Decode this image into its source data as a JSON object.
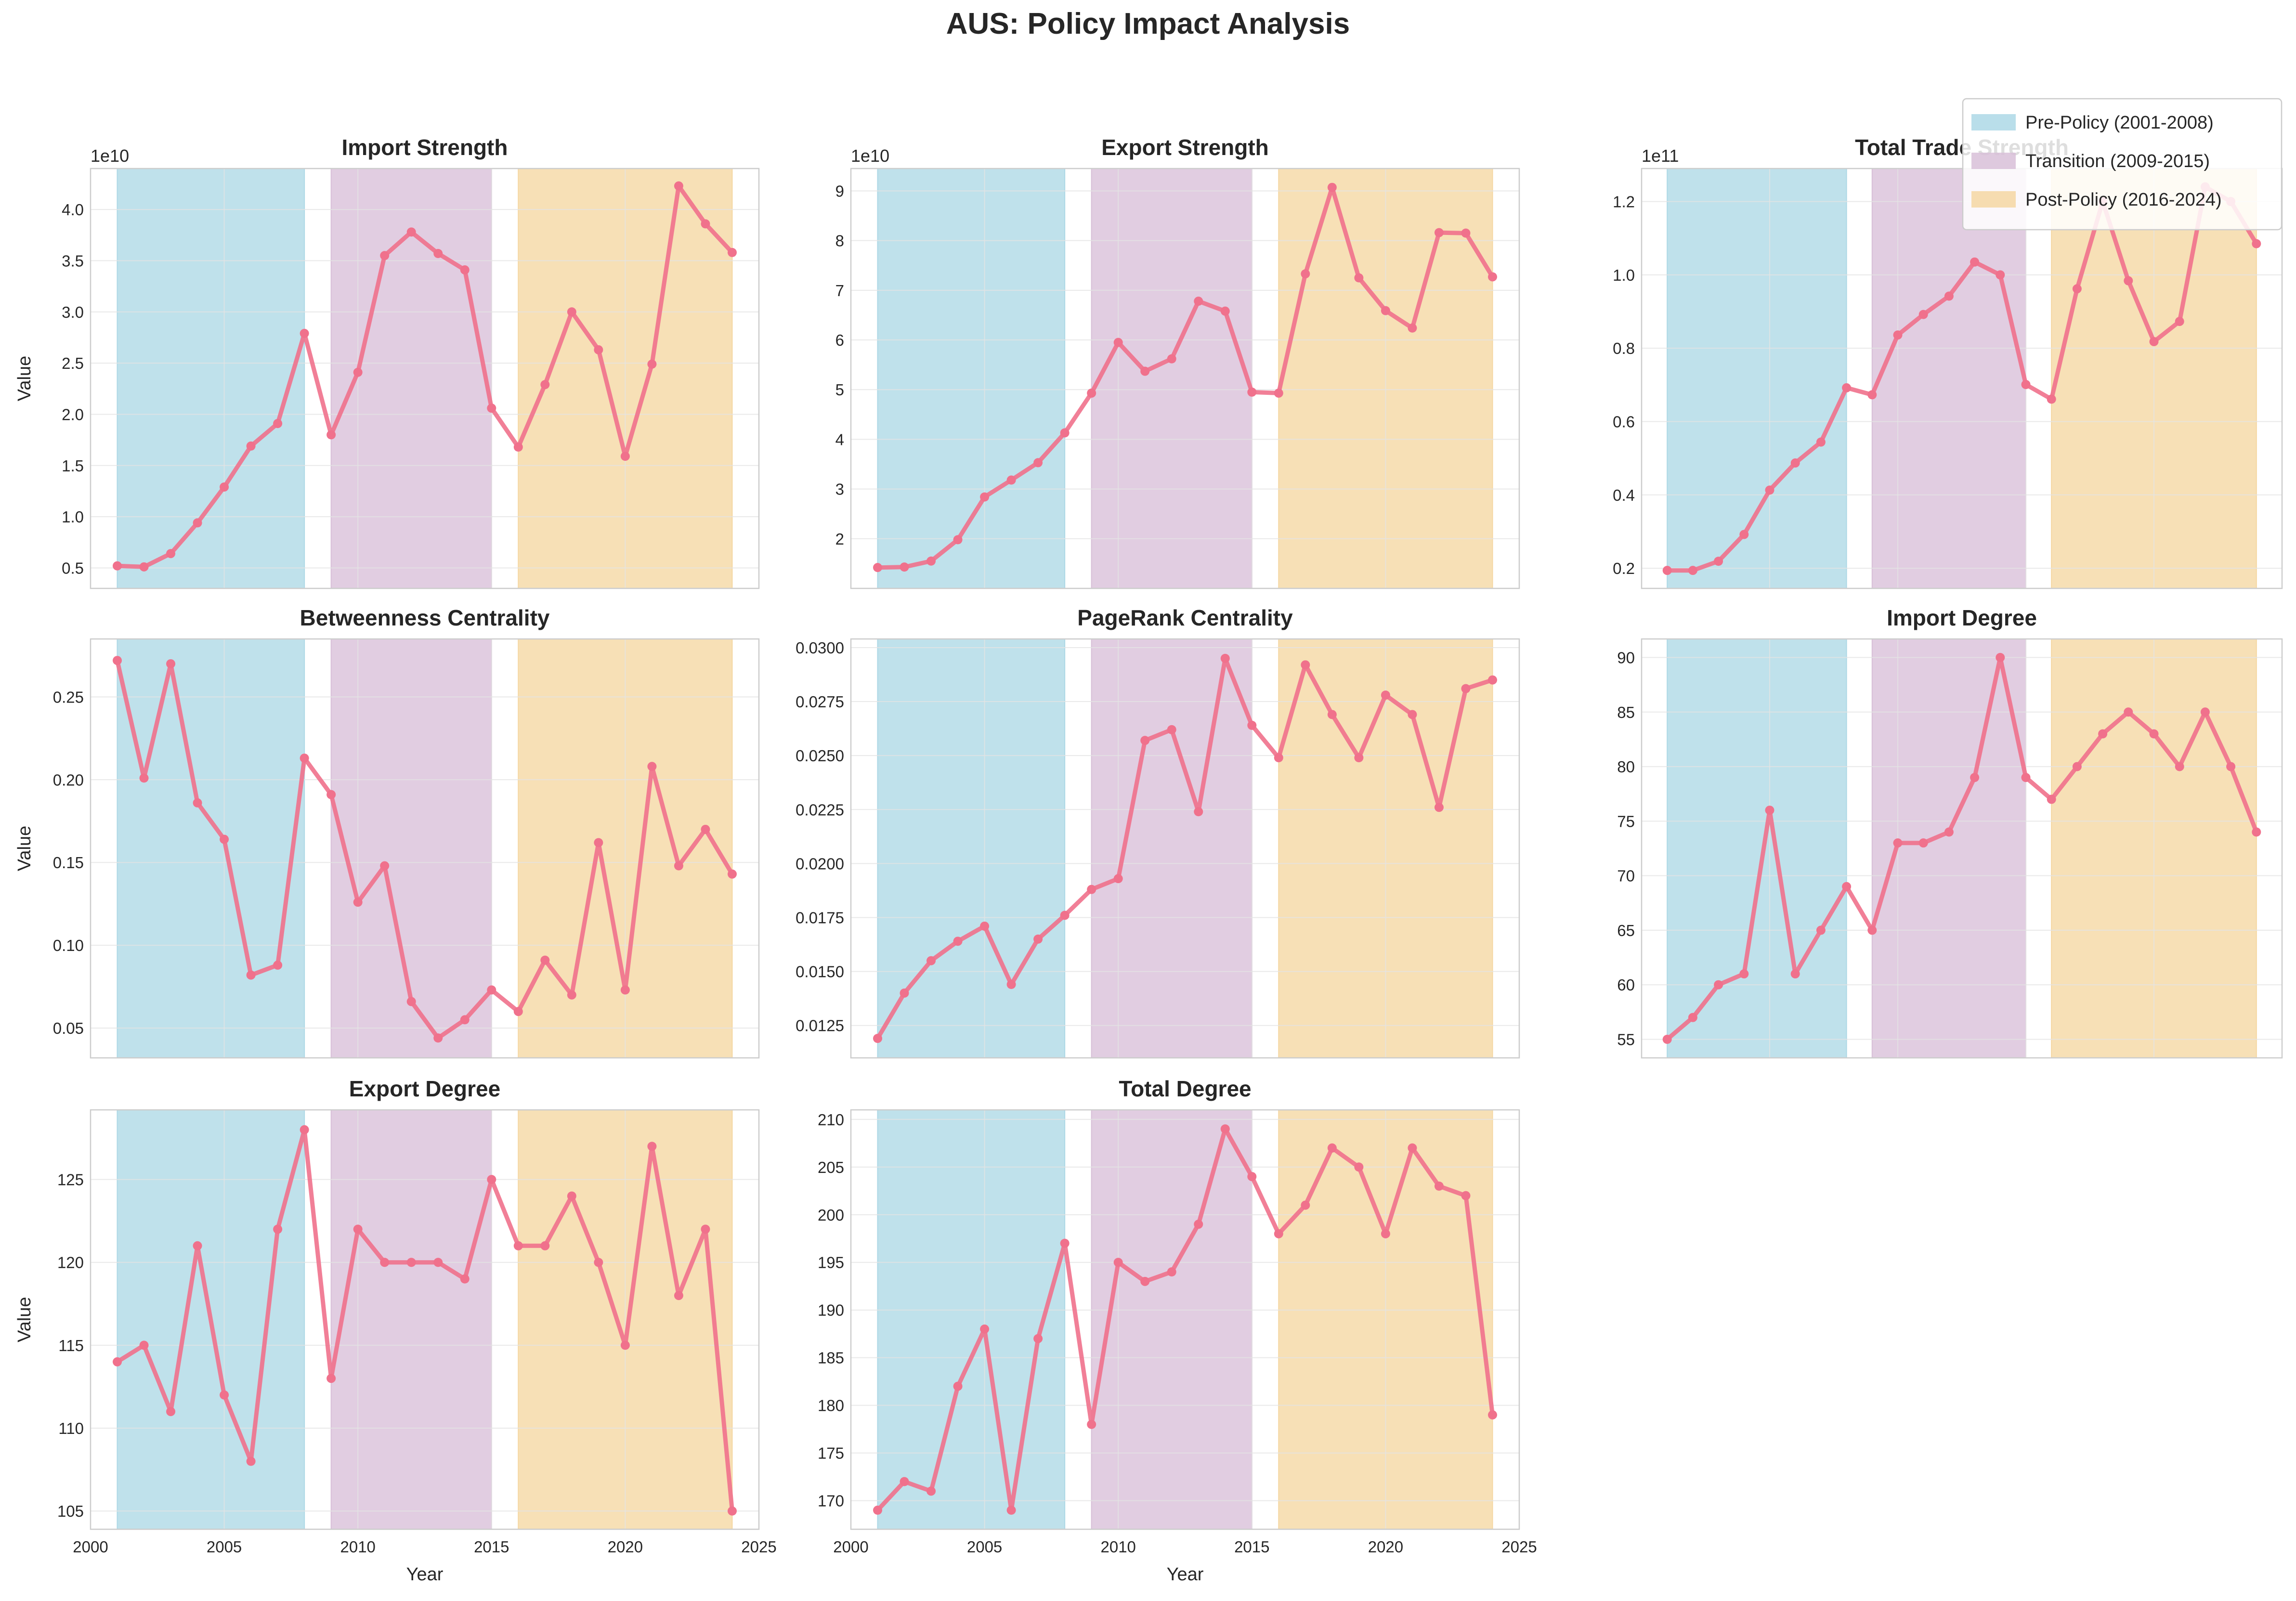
{
  "figure": {
    "title": "AUS: Policy Impact Analysis",
    "colors": {
      "line": "#f0718c",
      "frame": "#cccccc",
      "grid": "#e4e4e4"
    }
  },
  "chart_data": [
    {
      "type": "line",
      "title": "Import Strength",
      "ylabel": "Value",
      "xlabel": "",
      "scale_note": "1e10",
      "x": [
        2001,
        2002,
        2003,
        2004,
        2005,
        2006,
        2007,
        2008,
        2009,
        2010,
        2011,
        2012,
        2013,
        2014,
        2015,
        2016,
        2017,
        2018,
        2019,
        2020,
        2021,
        2022,
        2023,
        2024
      ],
      "y": [
        0.52,
        0.51,
        0.64,
        0.94,
        1.29,
        1.69,
        1.91,
        2.79,
        1.8,
        2.41,
        3.55,
        3.78,
        3.57,
        3.41,
        2.06,
        1.68,
        2.29,
        3.0,
        2.63,
        1.59,
        2.49,
        4.23,
        3.86,
        3.58
      ],
      "yticks": [
        0.5,
        1.0,
        1.5,
        2.0,
        2.5,
        3.0,
        3.5,
        4.0
      ],
      "ytick_labels": [
        "0.5",
        "1.0",
        "1.5",
        "2.0",
        "2.5",
        "3.0",
        "3.5",
        "4.0"
      ],
      "ylim": [
        0.3,
        4.4
      ],
      "xlim": [
        2000,
        2025
      ],
      "xticks": [
        2000,
        2005,
        2010,
        2015,
        2020,
        2025
      ],
      "xtick_labels": [],
      "grid": true
    },
    {
      "type": "line",
      "title": "Export Strength",
      "ylabel": "",
      "xlabel": "",
      "scale_note": "1e10",
      "x": [
        2001,
        2002,
        2003,
        2004,
        2005,
        2006,
        2007,
        2008,
        2009,
        2010,
        2011,
        2012,
        2013,
        2014,
        2015,
        2016,
        2017,
        2018,
        2019,
        2020,
        2021,
        2022,
        2023,
        2024
      ],
      "y": [
        1.42,
        1.43,
        1.55,
        1.98,
        2.84,
        3.18,
        3.53,
        4.13,
        4.93,
        5.95,
        5.37,
        5.62,
        6.78,
        6.58,
        4.95,
        4.93,
        7.33,
        9.07,
        7.25,
        6.59,
        6.24,
        8.16,
        8.15,
        7.27
      ],
      "yticks": [
        2,
        3,
        4,
        5,
        6,
        7,
        8,
        9
      ],
      "ytick_labels": [
        "2",
        "3",
        "4",
        "5",
        "6",
        "7",
        "8",
        "9"
      ],
      "ylim": [
        1.0,
        9.45
      ],
      "xlim": [
        2000,
        2025
      ],
      "xticks": [
        2000,
        2005,
        2010,
        2015,
        2020,
        2025
      ],
      "xtick_labels": [],
      "grid": true
    },
    {
      "type": "line",
      "title": "Total Trade Strength",
      "ylabel": "",
      "xlabel": "",
      "scale_note": "1e11",
      "x": [
        2001,
        2002,
        2003,
        2004,
        2005,
        2006,
        2007,
        2008,
        2009,
        2010,
        2011,
        2012,
        2013,
        2014,
        2015,
        2016,
        2017,
        2018,
        2019,
        2020,
        2021,
        2022,
        2023,
        2024
      ],
      "y": [
        0.194,
        0.194,
        0.219,
        0.292,
        0.413,
        0.487,
        0.544,
        0.692,
        0.673,
        0.836,
        0.892,
        0.942,
        1.035,
        1.0,
        0.701,
        0.661,
        0.962,
        1.2,
        0.984,
        0.818,
        0.873,
        1.24,
        1.2,
        1.085
      ],
      "yticks": [
        0.2,
        0.4,
        0.6,
        0.8,
        1.0,
        1.2
      ],
      "ytick_labels": [
        "0.2",
        "0.4",
        "0.6",
        "0.8",
        "1.0",
        "1.2"
      ],
      "ylim": [
        0.145,
        1.29
      ],
      "xlim": [
        2000,
        2025
      ],
      "xticks": [
        2000,
        2005,
        2010,
        2015,
        2020,
        2025
      ],
      "xtick_labels": [],
      "grid": true
    },
    {
      "type": "line",
      "title": "Betweenness Centrality",
      "ylabel": "Value",
      "xlabel": "",
      "scale_note": "",
      "x": [
        2001,
        2002,
        2003,
        2004,
        2005,
        2006,
        2007,
        2008,
        2009,
        2010,
        2011,
        2012,
        2013,
        2014,
        2015,
        2016,
        2017,
        2018,
        2019,
        2020,
        2021,
        2022,
        2023,
        2024
      ],
      "y": [
        0.272,
        0.201,
        0.27,
        0.186,
        0.164,
        0.082,
        0.088,
        0.213,
        0.191,
        0.126,
        0.148,
        0.066,
        0.044,
        0.055,
        0.073,
        0.06,
        0.091,
        0.07,
        0.162,
        0.073,
        0.208,
        0.148,
        0.17,
        0.143
      ],
      "yticks": [
        0.05,
        0.1,
        0.15,
        0.2,
        0.25
      ],
      "ytick_labels": [
        "0.05",
        "0.10",
        "0.15",
        "0.20",
        "0.25"
      ],
      "ylim": [
        0.032,
        0.285
      ],
      "xlim": [
        2000,
        2025
      ],
      "xticks": [
        2000,
        2005,
        2010,
        2015,
        2020,
        2025
      ],
      "xtick_labels": [],
      "grid": true
    },
    {
      "type": "line",
      "title": "PageRank Centrality",
      "ylabel": "",
      "xlabel": "",
      "scale_note": "",
      "x": [
        2001,
        2002,
        2003,
        2004,
        2005,
        2006,
        2007,
        2008,
        2009,
        2010,
        2011,
        2012,
        2013,
        2014,
        2015,
        2016,
        2017,
        2018,
        2019,
        2020,
        2021,
        2022,
        2023,
        2024
      ],
      "y": [
        0.0119,
        0.014,
        0.0155,
        0.0164,
        0.0171,
        0.0144,
        0.0165,
        0.0176,
        0.0188,
        0.0193,
        0.0257,
        0.0262,
        0.0224,
        0.0295,
        0.0264,
        0.0249,
        0.0292,
        0.0269,
        0.0249,
        0.0278,
        0.0269,
        0.0226,
        0.0281,
        0.0285
      ],
      "yticks": [
        0.0125,
        0.015,
        0.0175,
        0.02,
        0.0225,
        0.025,
        0.0275,
        0.03
      ],
      "ytick_labels": [
        "0.0125",
        "0.0150",
        "0.0175",
        "0.0200",
        "0.0225",
        "0.0250",
        "0.0275",
        "0.0300"
      ],
      "ylim": [
        0.011,
        0.0304
      ],
      "xlim": [
        2000,
        2025
      ],
      "xticks": [
        2000,
        2005,
        2010,
        2015,
        2020,
        2025
      ],
      "xtick_labels": [],
      "grid": true
    },
    {
      "type": "line",
      "title": "Import Degree",
      "ylabel": "",
      "xlabel": "",
      "scale_note": "",
      "x": [
        2001,
        2002,
        2003,
        2004,
        2005,
        2006,
        2007,
        2008,
        2009,
        2010,
        2011,
        2012,
        2013,
        2014,
        2015,
        2016,
        2017,
        2018,
        2019,
        2020,
        2021,
        2022,
        2023,
        2024
      ],
      "y": [
        55,
        57,
        60,
        61,
        76,
        61,
        65,
        69,
        65,
        73,
        73,
        74,
        79,
        90,
        79,
        77,
        80,
        83,
        85,
        83,
        80,
        85,
        80,
        74
      ],
      "yticks": [
        55,
        60,
        65,
        70,
        75,
        80,
        85,
        90
      ],
      "ytick_labels": [
        "55",
        "60",
        "65",
        "70",
        "75",
        "80",
        "85",
        "90"
      ],
      "ylim": [
        53.3,
        91.7
      ],
      "xlim": [
        2000,
        2025
      ],
      "xticks": [
        2000,
        2005,
        2010,
        2015,
        2020,
        2025
      ],
      "xtick_labels": [],
      "grid": true
    },
    {
      "type": "line",
      "title": "Export Degree",
      "ylabel": "Value",
      "xlabel": "Year",
      "scale_note": "",
      "x": [
        2001,
        2002,
        2003,
        2004,
        2005,
        2006,
        2007,
        2008,
        2009,
        2010,
        2011,
        2012,
        2013,
        2014,
        2015,
        2016,
        2017,
        2018,
        2019,
        2020,
        2021,
        2022,
        2023,
        2024
      ],
      "y": [
        114,
        115,
        111,
        121,
        112,
        108,
        122,
        128,
        113,
        122,
        120,
        120,
        120,
        119,
        125,
        121,
        121,
        124,
        120,
        115,
        127,
        118,
        122,
        105
      ],
      "yticks": [
        105,
        110,
        115,
        120,
        125
      ],
      "ytick_labels": [
        "105",
        "110",
        "115",
        "120",
        "125"
      ],
      "ylim": [
        103.9,
        129.2
      ],
      "xlim": [
        2000,
        2025
      ],
      "xticks": [
        2000,
        2005,
        2010,
        2015,
        2020,
        2025
      ],
      "xtick_labels": [
        "2000",
        "2005",
        "2010",
        "2015",
        "2020",
        "2025"
      ],
      "grid": true
    },
    {
      "type": "line",
      "title": "Total Degree",
      "ylabel": "",
      "xlabel": "Year",
      "scale_note": "",
      "x": [
        2001,
        2002,
        2003,
        2004,
        2005,
        2006,
        2007,
        2008,
        2009,
        2010,
        2011,
        2012,
        2013,
        2014,
        2015,
        2016,
        2017,
        2018,
        2019,
        2020,
        2021,
        2022,
        2023,
        2024
      ],
      "y": [
        169,
        172,
        171,
        182,
        188,
        169,
        187,
        197,
        178,
        195,
        193,
        194,
        199,
        209,
        204,
        198,
        201,
        207,
        205,
        198,
        207,
        203,
        202,
        179
      ],
      "yticks": [
        170,
        175,
        180,
        185,
        190,
        195,
        200,
        205,
        210
      ],
      "ytick_labels": [
        "170",
        "175",
        "180",
        "185",
        "190",
        "195",
        "200",
        "205",
        "210"
      ],
      "ylim": [
        167,
        211
      ],
      "xlim": [
        2000,
        2025
      ],
      "xticks": [
        2000,
        2005,
        2010,
        2015,
        2020,
        2025
      ],
      "xtick_labels": [
        "2000",
        "2005",
        "2010",
        "2015",
        "2020",
        "2025"
      ],
      "grid": true
    }
  ],
  "periods": [
    {
      "label": "Pre-Policy (2001-2008)",
      "start": 2001,
      "end": 2008,
      "color": "#add8e6"
    },
    {
      "label": "Transition (2009-2015)",
      "start": 2009,
      "end": 2015,
      "color": "#d8bfd8"
    },
    {
      "label": "Post-Policy (2016-2024)",
      "start": 2016,
      "end": 2024,
      "color": "#f5d7a2"
    }
  ],
  "legend": {
    "placement": "top-right",
    "items": [
      "Pre-Policy (2001-2008)",
      "Transition (2009-2015)",
      "Post-Policy (2016-2024)"
    ]
  }
}
